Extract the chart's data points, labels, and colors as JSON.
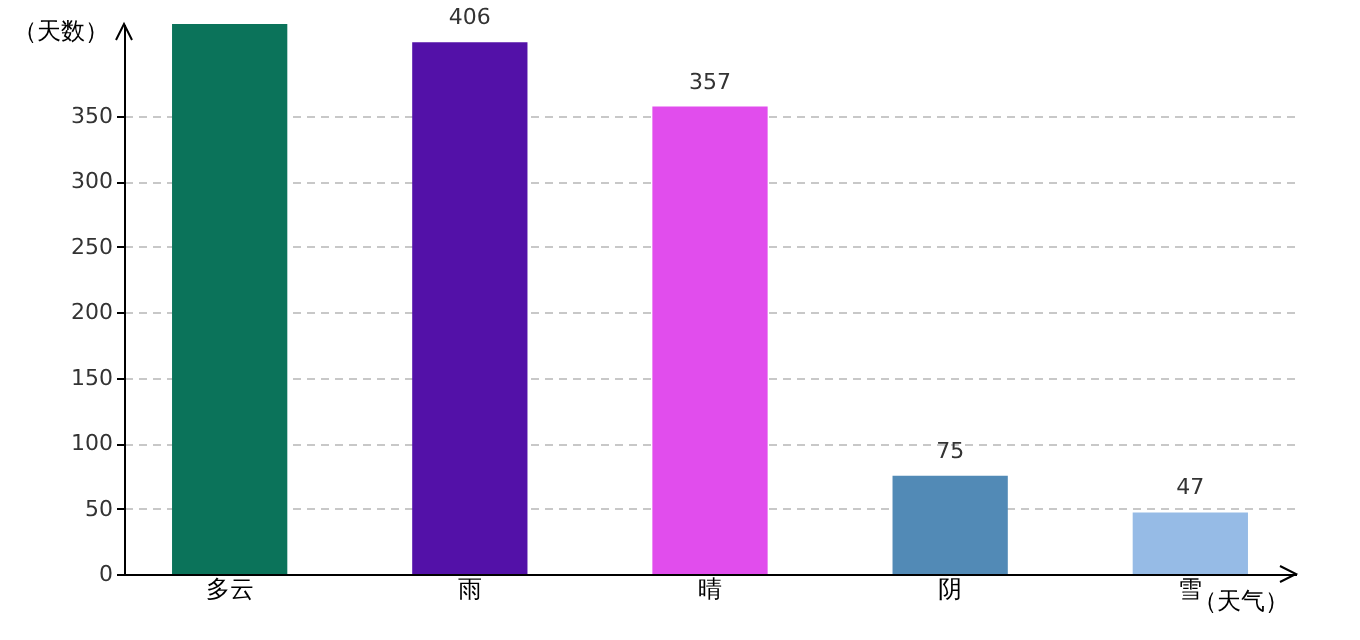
{
  "chart_data": {
    "type": "bar",
    "xlabel": "（天气）",
    "ylabel": "（天数）",
    "categories": [
      "多云",
      "雨",
      "晴",
      "阴",
      "雪"
    ],
    "values": [
      420,
      406,
      357,
      75,
      47
    ],
    "value_labels": [
      null,
      "406",
      "357",
      "75",
      "47"
    ],
    "colors": [
      "#0b735a",
      "#5311a8",
      "#e14ded",
      "#528ab6",
      "#96bbe6"
    ],
    "ylim": [
      0,
      420
    ],
    "yticks": [
      0,
      50,
      100,
      150,
      200,
      250,
      300,
      350
    ],
    "grid": "y"
  }
}
